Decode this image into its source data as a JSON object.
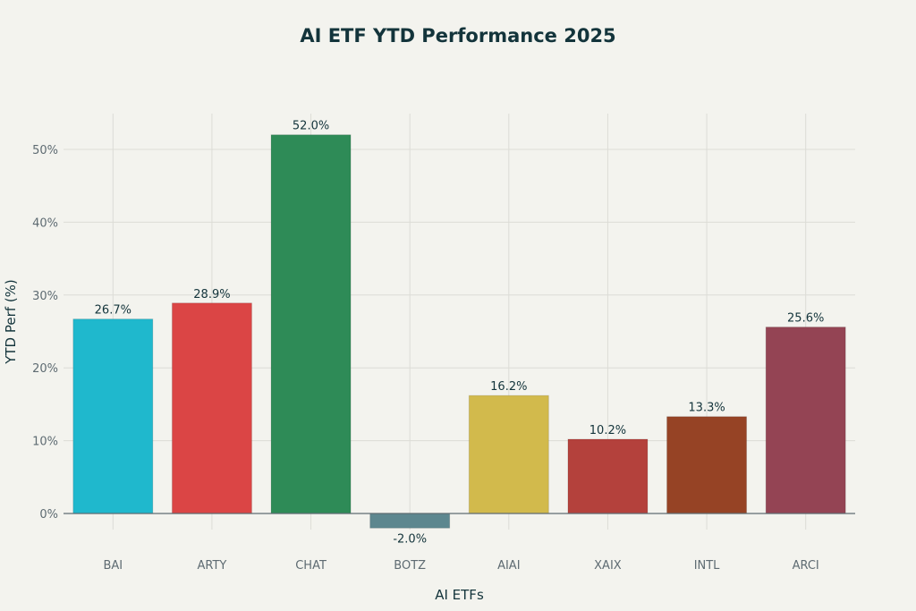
{
  "chart_data": {
    "type": "bar",
    "title": "AI ETF YTD Performance 2025",
    "xlabel": "AI ETFs",
    "ylabel": "YTD Perf (%)",
    "categories": [
      "BAI",
      "ARTY",
      "CHAT",
      "BOTZ",
      "AIAI",
      "XAIX",
      "INTL",
      "ARCI"
    ],
    "values": [
      26.7,
      28.9,
      52.0,
      -2.0,
      16.2,
      10.2,
      13.3,
      25.6
    ],
    "data_labels": [
      "26.7%",
      "28.9%",
      "52.0%",
      "-2.0%",
      "16.2%",
      "10.2%",
      "13.3%",
      "25.6%"
    ],
    "colors": [
      "#1FB8CD",
      "#DB4545",
      "#2E8B57",
      "#5D878F",
      "#D2BA4C",
      "#B4413C",
      "#964325",
      "#944454"
    ],
    "yticks": [
      0,
      10,
      20,
      30,
      40,
      50
    ],
    "ytick_labels": [
      "0%",
      "10%",
      "20%",
      "30%",
      "40%",
      "50%"
    ],
    "ylim": [
      -2.2,
      54.9
    ],
    "grid": true,
    "legend": "none"
  }
}
